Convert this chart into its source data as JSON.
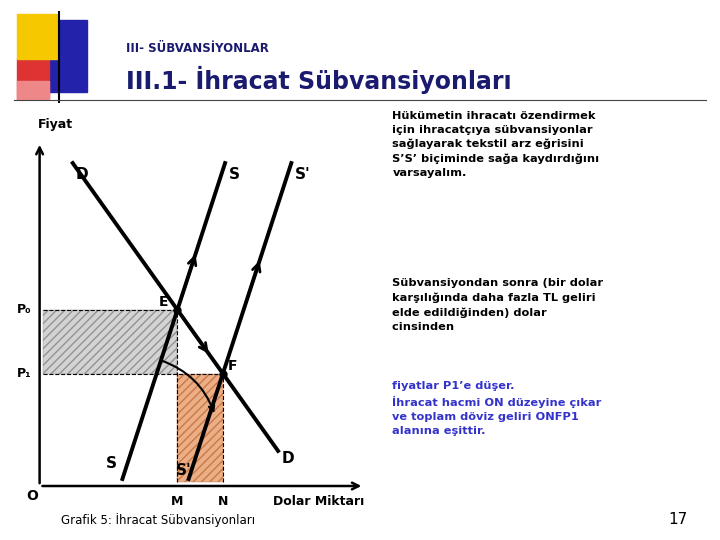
{
  "title_small": "III- SÜBVANSİYONLAR",
  "title_large": "III.1- İhracat Sübvansiyonları",
  "xlabel": "Dolar Miktarı",
  "ylabel": "Fiyat",
  "background_color": "#ffffff",
  "text_color_dark": "#1a1a6e",
  "text_color_black": "#000000",
  "text_color_blue": "#3333cc",
  "annotation_text1": "Hükümetin ihracatı özendirmek\niçin ihracatçıya sübvansiyonlar\nsağlayarak tekstil arz eğrisini\nS’S’ biçiminde sağa kaydırdığını\nvarsayalım.",
  "annotation_text2_black": "Sübvansiyondan sonra (bir dolar\nkarşılığında daha fazla TL geliri\nelde edildiğinden) dolar\ncinsinden ",
  "annotation_text2_blue": "fiyatlar P1’e düşer.\nİhracat hacmi ON düzeyine çıkar\nve toplam döviz geliri ONFP1\nalanına eşittir.",
  "footer": "Grafik 5: İhracat Sübvansiyonları",
  "page_num": "17",
  "gray_hatch_color": "#c8c8c8",
  "orange_hatch_color": "#e8a878"
}
